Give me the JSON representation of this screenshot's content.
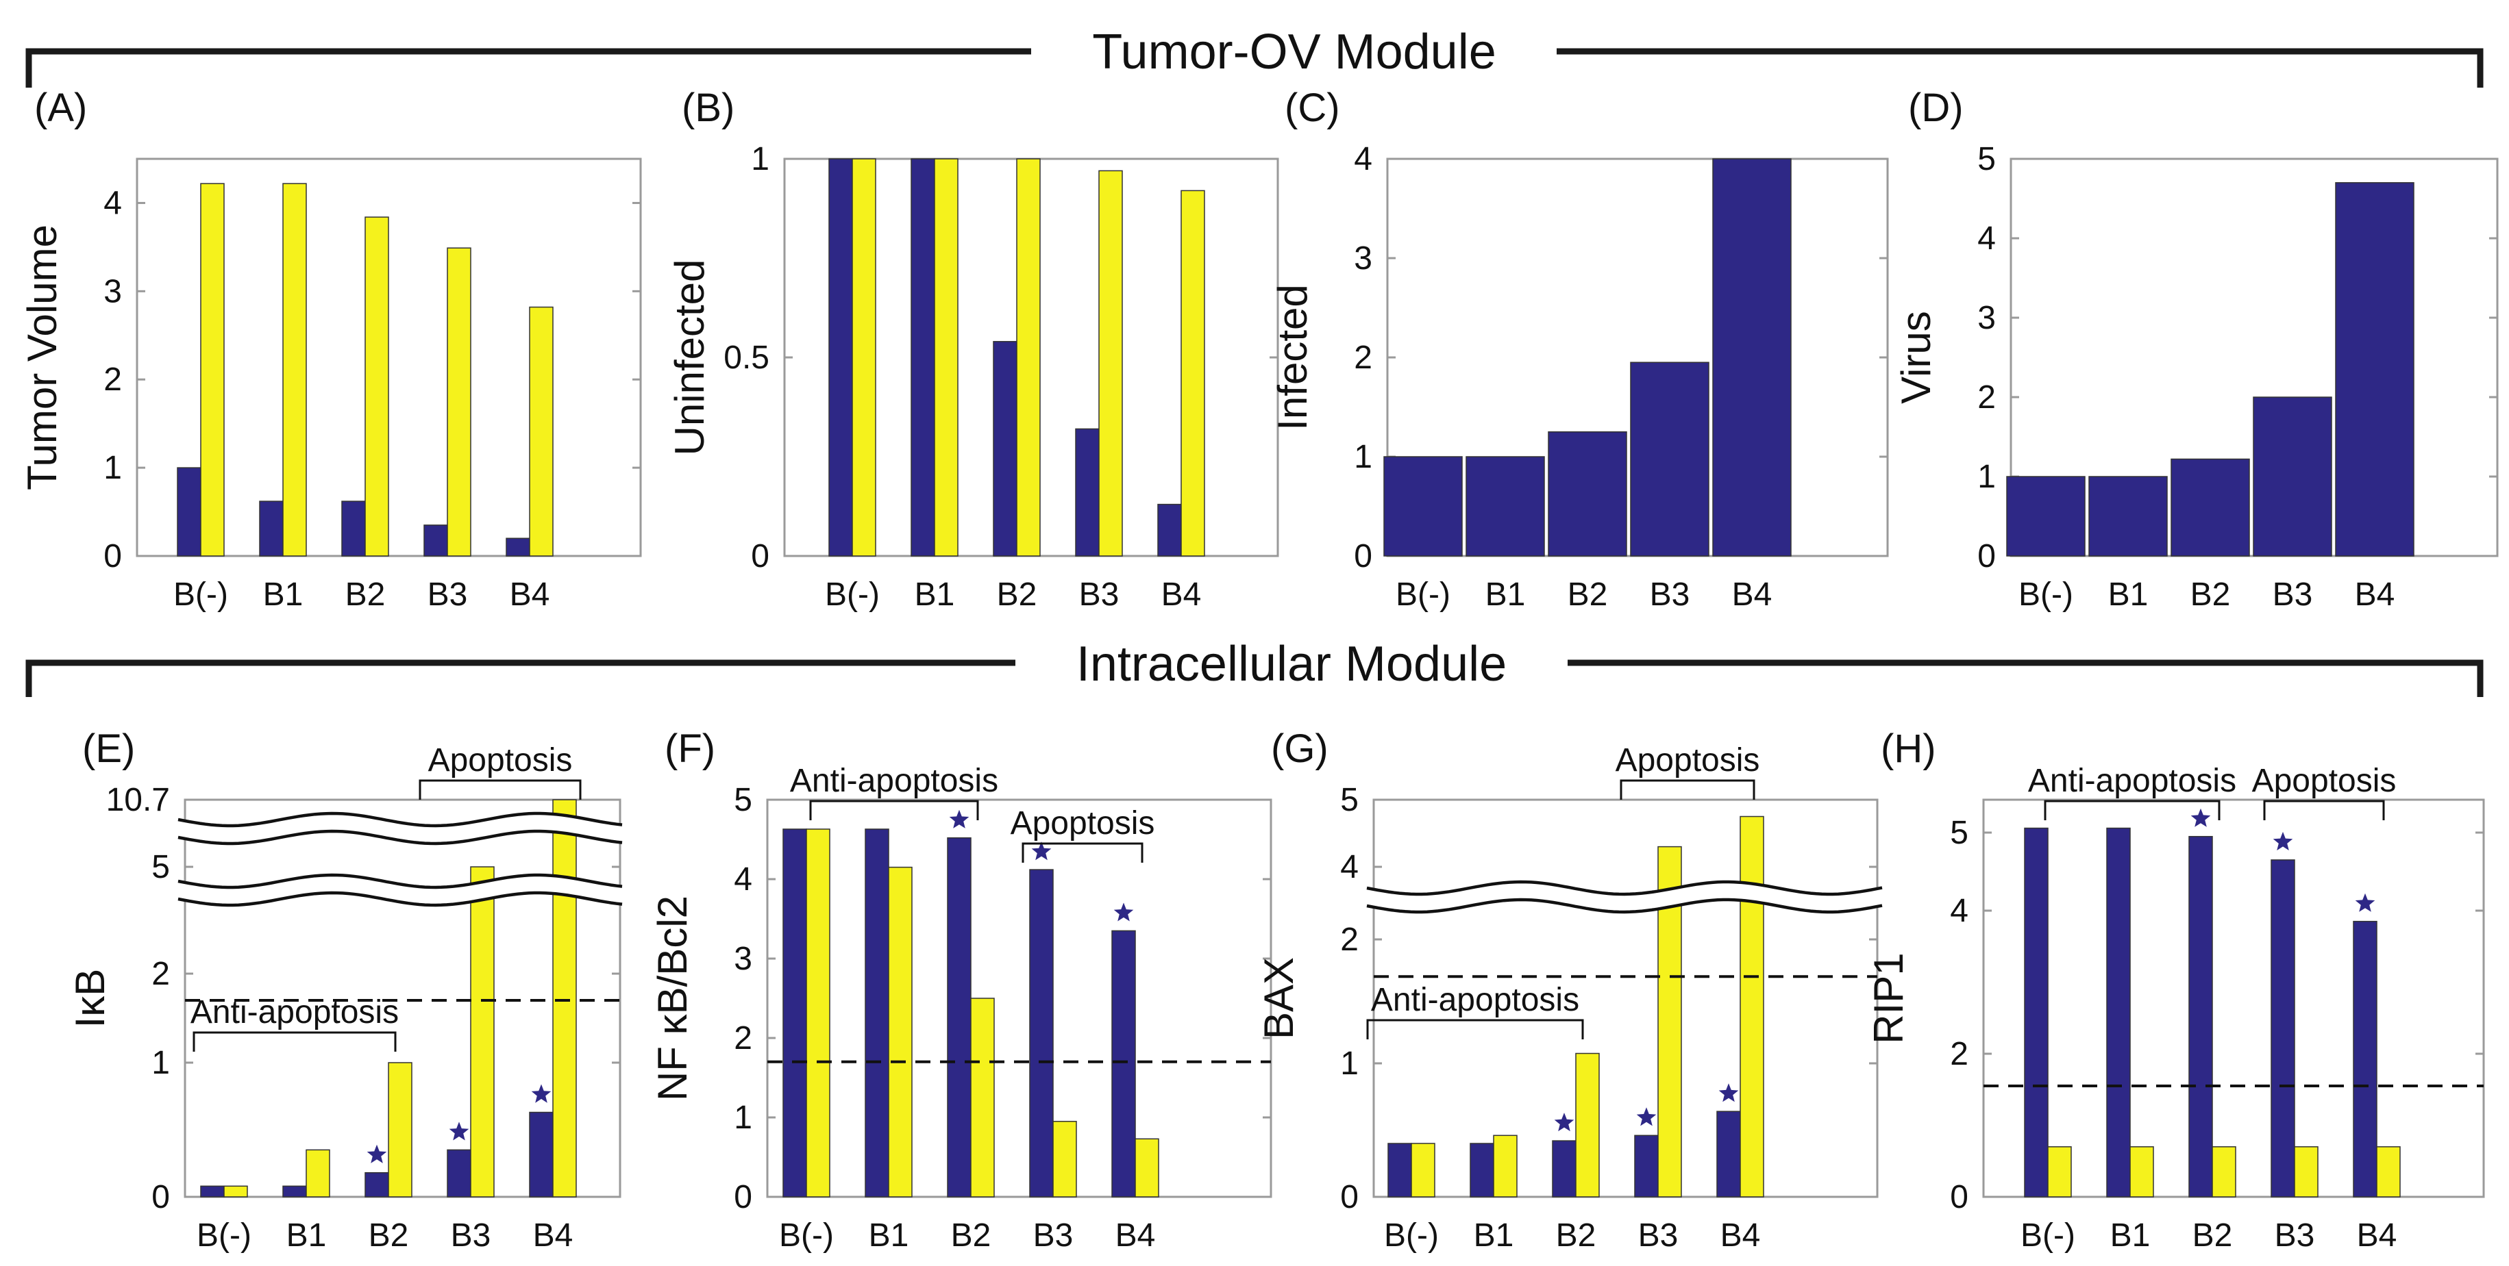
{
  "colors": {
    "series1": "#2e2886",
    "series2": "#f5f21c",
    "star": "#2e2886",
    "text": "#111111"
  },
  "modules": [
    {
      "title": "Tumor-OV Module"
    },
    {
      "title": "Intracellular Module"
    }
  ],
  "chart_data": [
    {
      "panel": "(A)",
      "type": "bar",
      "ylabel": "Tumor Volume",
      "categories": [
        "B(-)",
        "B1",
        "B2",
        "B3",
        "B4"
      ],
      "ylim": [
        0,
        4.5
      ],
      "yticks": [
        0,
        1,
        2,
        3,
        4
      ],
      "ytick_labels": [
        "0",
        "1",
        "2",
        "3",
        "4"
      ],
      "series": [
        {
          "name": "series1",
          "values": [
            1.0,
            0.62,
            0.62,
            0.35,
            0.2
          ]
        },
        {
          "name": "series2",
          "values": [
            4.22,
            4.22,
            3.84,
            3.49,
            2.82
          ]
        }
      ]
    },
    {
      "panel": "(B)",
      "type": "bar",
      "ylabel": "Uninfected",
      "categories": [
        "B(-)",
        "B1",
        "B2",
        "B3",
        "B4"
      ],
      "ylim": [
        0,
        1
      ],
      "yticks": [
        0,
        0.5,
        1
      ],
      "ytick_labels": [
        "0",
        "0.5",
        "1"
      ],
      "series": [
        {
          "name": "series1",
          "values": [
            1.0,
            1.0,
            0.54,
            0.32,
            0.13
          ]
        },
        {
          "name": "series2",
          "values": [
            1.0,
            1.0,
            1.0,
            0.97,
            0.92
          ]
        }
      ]
    },
    {
      "panel": "(C)",
      "type": "bar",
      "ylabel": "Infected",
      "categories": [
        "B(-)",
        "B1",
        "B2",
        "B3",
        "B4"
      ],
      "ylim": [
        0,
        4
      ],
      "yticks": [
        0,
        1,
        2,
        3,
        4
      ],
      "ytick_labels": [
        "0",
        "1",
        "2",
        "3",
        "4"
      ],
      "series": [
        {
          "name": "series1",
          "values": [
            1.0,
            1.0,
            1.25,
            1.95,
            4.0
          ]
        }
      ]
    },
    {
      "panel": "(D)",
      "type": "bar",
      "ylabel": "Virus",
      "categories": [
        "B(-)",
        "B1",
        "B2",
        "B3",
        "B4"
      ],
      "ylim": [
        0,
        5
      ],
      "yticks": [
        0,
        1,
        2,
        3,
        4,
        5
      ],
      "ytick_labels": [
        "0",
        "1",
        "2",
        "3",
        "4",
        "5"
      ],
      "series": [
        {
          "name": "series1",
          "values": [
            1.0,
            1.0,
            1.22,
            2.0,
            4.7
          ]
        }
      ]
    },
    {
      "panel": "(E)",
      "type": "bar",
      "ylabel": "IκB",
      "axis_break": true,
      "categories": [
        "B(-)",
        "B1",
        "B2",
        "B3",
        "B4"
      ],
      "ytick_labels": [
        "0",
        "1",
        "2",
        "5",
        "10.7"
      ],
      "reference_line": 1.7,
      "series": [
        {
          "name": "series1",
          "values": [
            0.08,
            0.08,
            0.18,
            0.35,
            0.63
          ]
        },
        {
          "name": "series2",
          "values": [
            0.08,
            0.35,
            1.0,
            5.0,
            10.7
          ]
        }
      ],
      "stars": [
        "B2",
        "B3",
        "B4"
      ],
      "annotations": [
        {
          "text": "Anti-apoptosis",
          "from": "B(-)",
          "to": "B2"
        },
        {
          "text": "Apoptosis",
          "from": "B3",
          "to": "B4"
        }
      ]
    },
    {
      "panel": "(F)",
      "type": "bar",
      "ylabel": "NF κB/Bcl2",
      "categories": [
        "B(-)",
        "B1",
        "B2",
        "B3",
        "B4"
      ],
      "ylim": [
        0,
        5
      ],
      "yticks": [
        0,
        1,
        2,
        3,
        4,
        5
      ],
      "ytick_labels": [
        "0",
        "1",
        "2",
        "3",
        "4",
        "5"
      ],
      "reference_line": 1.7,
      "series": [
        {
          "name": "series1",
          "values": [
            4.63,
            4.63,
            4.52,
            4.12,
            3.35
          ]
        },
        {
          "name": "series2",
          "values": [
            4.63,
            4.15,
            2.5,
            0.95,
            0.73
          ]
        }
      ],
      "stars": [
        "B2",
        "B3",
        "B4"
      ],
      "annotations": [
        {
          "text": "Anti-apoptosis",
          "from": "B(-)",
          "to": "B2"
        },
        {
          "text": "Apoptosis",
          "from": "B3",
          "to": "B4"
        }
      ]
    },
    {
      "panel": "(G)",
      "type": "bar",
      "ylabel": "BAX",
      "axis_break": true,
      "categories": [
        "B(-)",
        "B1",
        "B2",
        "B3",
        "B4"
      ],
      "ytick_labels": [
        "0",
        "1",
        "2",
        "4",
        "5"
      ],
      "reference_line": 1.7,
      "series": [
        {
          "name": "series1",
          "values": [
            0.4,
            0.4,
            0.42,
            0.46,
            0.64
          ]
        },
        {
          "name": "series2",
          "values": [
            0.4,
            0.46,
            1.08,
            4.3,
            4.75
          ]
        }
      ],
      "stars": [
        "B2",
        "B3",
        "B4"
      ],
      "annotations": [
        {
          "text": "Anti-apoptosis",
          "from": "B(-)",
          "to": "B2"
        },
        {
          "text": "Apoptosis",
          "from": "B3",
          "to": "B4"
        }
      ]
    },
    {
      "panel": "(H)",
      "type": "bar",
      "ylabel": "RIP1",
      "categories": [
        "B(-)",
        "B1",
        "B2",
        "B3",
        "B4"
      ],
      "ytick_labels": [
        "0",
        "2",
        "4",
        "5"
      ],
      "reference_line": 1.55,
      "series": [
        {
          "name": "series1",
          "values": [
            5.05,
            5.05,
            4.95,
            4.65,
            3.85
          ]
        },
        {
          "name": "series2",
          "values": [
            0.7,
            0.7,
            0.7,
            0.7,
            0.7
          ]
        }
      ],
      "stars": [
        "B2",
        "B3",
        "B4"
      ],
      "annotations": [
        {
          "text": "Anti-apoptosis",
          "from": "B(-)",
          "to": "B2"
        },
        {
          "text": "Apoptosis",
          "from": "B3",
          "to": "B4"
        }
      ]
    }
  ]
}
